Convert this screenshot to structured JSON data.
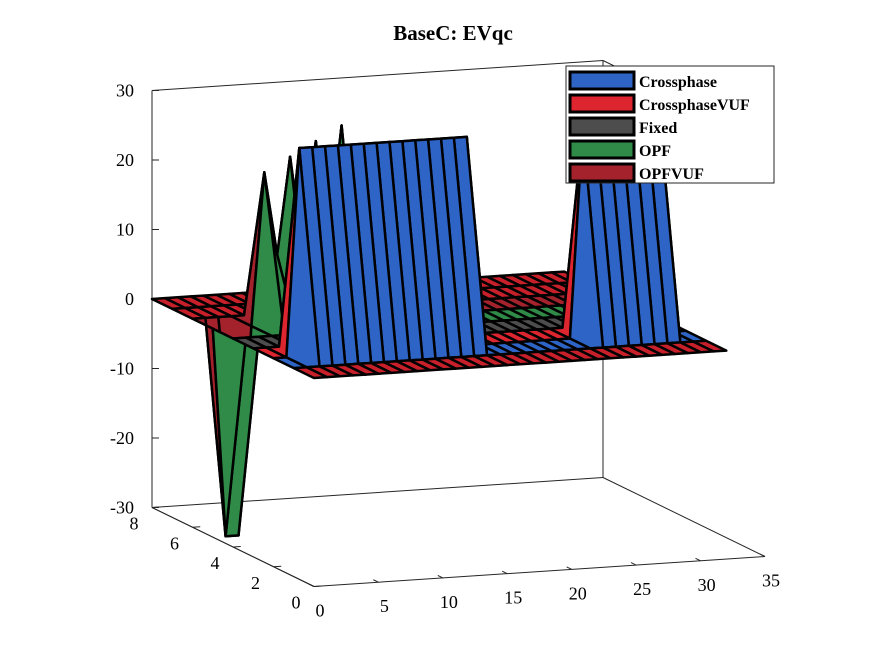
{
  "chart_data": {
    "type": "3d-surface",
    "title": "BaseC: EVqc",
    "xlabel": "",
    "ylabel": "",
    "zlabel": "",
    "x_ticks": [
      "0",
      "5",
      "10",
      "15",
      "20",
      "25",
      "30",
      "35"
    ],
    "y_ticks": [
      "0",
      "2",
      "4",
      "6",
      "8"
    ],
    "z_ticks": [
      "30",
      "20",
      "10",
      "0",
      "-10",
      "-20",
      "-30"
    ],
    "xlim": [
      0,
      35
    ],
    "ylim": [
      0,
      8
    ],
    "zlim": [
      -30,
      30
    ],
    "grid": false,
    "legend_position": "top-right",
    "series": [
      {
        "name": "Crossphase",
        "color": "#2e64c6",
        "y_row": 1,
        "values": [
          0,
          0,
          0,
          0,
          0,
          0,
          0,
          0,
          0,
          0,
          0,
          0,
          0,
          0,
          0,
          0,
          0,
          0,
          0,
          0,
          0,
          0,
          0,
          0,
          0,
          0,
          0,
          0,
          0,
          0,
          0,
          0,
          0
        ]
      },
      {
        "name": "CrossphaseVUF",
        "color": "#dd2530",
        "y_row": 2,
        "values": [
          0,
          0,
          30,
          30,
          30,
          30,
          30,
          30,
          30,
          30,
          30,
          30,
          30,
          30,
          30,
          30,
          0,
          0,
          0,
          0,
          0,
          0,
          0,
          0,
          30,
          30,
          30,
          30,
          30,
          30,
          30,
          0,
          0
        ]
      },
      {
        "name": "Fixed",
        "color": "#4d4d4d",
        "y_row": 3,
        "values": [
          0,
          0,
          0,
          0,
          0,
          0,
          0,
          0,
          0,
          0,
          0,
          0,
          0,
          0,
          0,
          0,
          0,
          0,
          0,
          0,
          0,
          0,
          0,
          0,
          0,
          0,
          0,
          0,
          0,
          0,
          0,
          0,
          0
        ]
      },
      {
        "name": "OPF",
        "color": "#2f8b47",
        "y_row": 4,
        "values": [
          0,
          0,
          0,
          0,
          0,
          0,
          0,
          0,
          0,
          0,
          0,
          0,
          0,
          0,
          0,
          0,
          0,
          0,
          0,
          0,
          0,
          0,
          0,
          0,
          0,
          0,
          0,
          0,
          0,
          0,
          0,
          0,
          0
        ]
      },
      {
        "name": "OPFVUF",
        "color": "#a3222b",
        "y_row": 5,
        "values": [
          0,
          -30,
          -30,
          0,
          22,
          10,
          24,
          10,
          26,
          12,
          28,
          0,
          0,
          0,
          0,
          0,
          0,
          0,
          0,
          0,
          0,
          0,
          0,
          0,
          0,
          0,
          0,
          0,
          0,
          0,
          0,
          0,
          0
        ]
      }
    ],
    "floor_color": "#c8202a",
    "line_color": "#000000"
  }
}
